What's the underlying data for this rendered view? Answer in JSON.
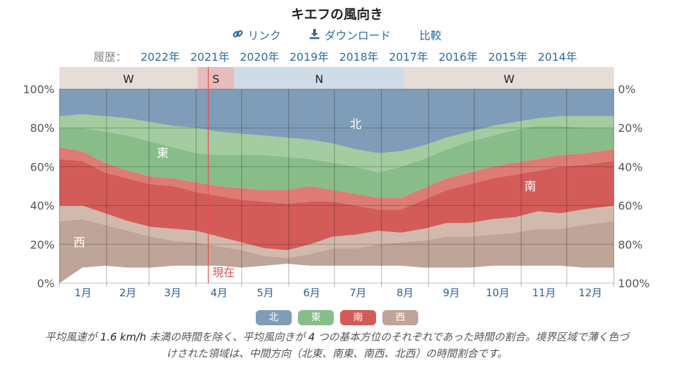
{
  "title": "キエフの風向き",
  "actions": {
    "link": "リンク",
    "download": "ダウンロード",
    "compare": "比較"
  },
  "history": {
    "label": "履歴：",
    "years": [
      "2022年",
      "2021年",
      "2020年",
      "2019年",
      "2018年",
      "2017年",
      "2016年",
      "2015年",
      "2014年"
    ]
  },
  "colors": {
    "north": "#7f9db9",
    "east": "#88bd8a",
    "south": "#d45c58",
    "west": "#bfa498",
    "season_w": "#e6dcd8",
    "season_s": "#e8bcbc",
    "season_n": "#cfdbe5",
    "now_line": "#e05050"
  },
  "chart_data": {
    "type": "area",
    "stacking": "percent",
    "x_unit": "day_of_year",
    "months": [
      "1月",
      "2月",
      "3月",
      "4月",
      "5月",
      "6月",
      "7月",
      "8月",
      "9月",
      "10月",
      "11月",
      "12月"
    ],
    "yticks_left": [
      "0%",
      "20%",
      "40%",
      "60%",
      "80%",
      "100%"
    ],
    "yticks_right": [
      "100%",
      "80%",
      "60%",
      "40%",
      "20%",
      "0%"
    ],
    "ylim": [
      0,
      100
    ],
    "boundaries_x": [
      0,
      15,
      30,
      45,
      60,
      75,
      90,
      105,
      120,
      135,
      150,
      165,
      180,
      195,
      210,
      225,
      240,
      255,
      270,
      285,
      300,
      315,
      330,
      345,
      365
    ],
    "boundaries": [
      [
        0,
        8,
        9,
        8,
        8,
        9,
        9,
        9,
        8,
        9,
        10,
        9,
        9,
        9,
        9,
        9,
        8,
        8,
        8,
        9,
        9,
        9,
        9,
        8,
        8
      ],
      [
        32,
        33,
        30,
        27,
        24,
        22,
        21,
        19,
        17,
        14,
        13,
        15,
        18,
        18,
        20,
        21,
        22,
        24,
        24,
        25,
        26,
        28,
        28,
        30,
        32
      ],
      [
        40,
        40,
        36,
        32,
        29,
        28,
        27,
        24,
        21,
        18,
        17,
        20,
        24,
        25,
        27,
        26,
        28,
        31,
        31,
        33,
        34,
        37,
        36,
        38,
        40
      ],
      [
        64,
        63,
        57,
        54,
        51,
        50,
        47,
        45,
        43,
        42,
        41,
        42,
        42,
        40,
        38,
        38,
        43,
        48,
        51,
        54,
        56,
        58,
        60,
        61,
        63
      ],
      [
        70,
        68,
        62,
        58,
        55,
        54,
        52,
        50,
        49,
        48,
        48,
        50,
        48,
        46,
        44,
        44,
        49,
        54,
        57,
        60,
        62,
        64,
        66,
        67,
        69
      ],
      [
        80,
        80,
        78,
        76,
        73,
        70,
        67,
        66,
        66,
        66,
        65,
        64,
        62,
        60,
        57,
        60,
        64,
        69,
        73,
        76,
        79,
        81,
        81,
        80,
        80
      ],
      [
        86,
        87,
        86,
        85,
        83,
        81,
        80,
        78,
        77,
        76,
        75,
        74,
        72,
        69,
        67,
        68,
        71,
        75,
        78,
        81,
        83,
        85,
        86,
        86,
        86
      ],
      [
        100,
        100,
        100,
        100,
        100,
        100,
        100,
        100,
        100,
        100,
        100,
        100,
        100,
        100,
        100,
        100,
        100,
        100,
        100,
        100,
        100,
        100,
        100,
        100,
        100
      ]
    ],
    "band_colors": [
      "#bfa498",
      "#d2b9ad",
      "#d45c58",
      "#dd7b74",
      "#88bd8a",
      "#a3cca1",
      "#7f9db9"
    ],
    "region_labels": [
      {
        "text": "北",
        "x": 195,
        "y": 82
      },
      {
        "text": "東",
        "x": 68,
        "y": 67
      },
      {
        "text": "南",
        "x": 310,
        "y": 50
      },
      {
        "text": "西",
        "x": 13,
        "y": 21
      }
    ],
    "seasons": [
      {
        "label": "W",
        "start": 0,
        "end": 91,
        "color": "#e6dcd8"
      },
      {
        "label": "S",
        "start": 91,
        "end": 115,
        "color": "#e8bcbc"
      },
      {
        "label": "N",
        "start": 115,
        "end": 227,
        "color": "#cfdbe5"
      },
      {
        "label": "W",
        "start": 227,
        "end": 365,
        "color": "#e6dcd8"
      }
    ],
    "now": {
      "label": "現在",
      "x": 98
    }
  },
  "legend": [
    {
      "label": "北",
      "color": "#7f9db9"
    },
    {
      "label": "東",
      "color": "#88bd8a"
    },
    {
      "label": "南",
      "color": "#d45c58"
    },
    {
      "label": "西",
      "color": "#bfa498"
    }
  ],
  "caption": {
    "pre": "平均風速が ",
    "speed": "1.6 km/h",
    "mid": " 未満の時間を除く、平均風向きが ",
    "count": "4",
    "post": " つの基本方位のそれぞれであった時間の割合。境界区域で薄く色づけされた領域は、中間方向（北東、南東、南西、北西）の時間割合です。"
  }
}
